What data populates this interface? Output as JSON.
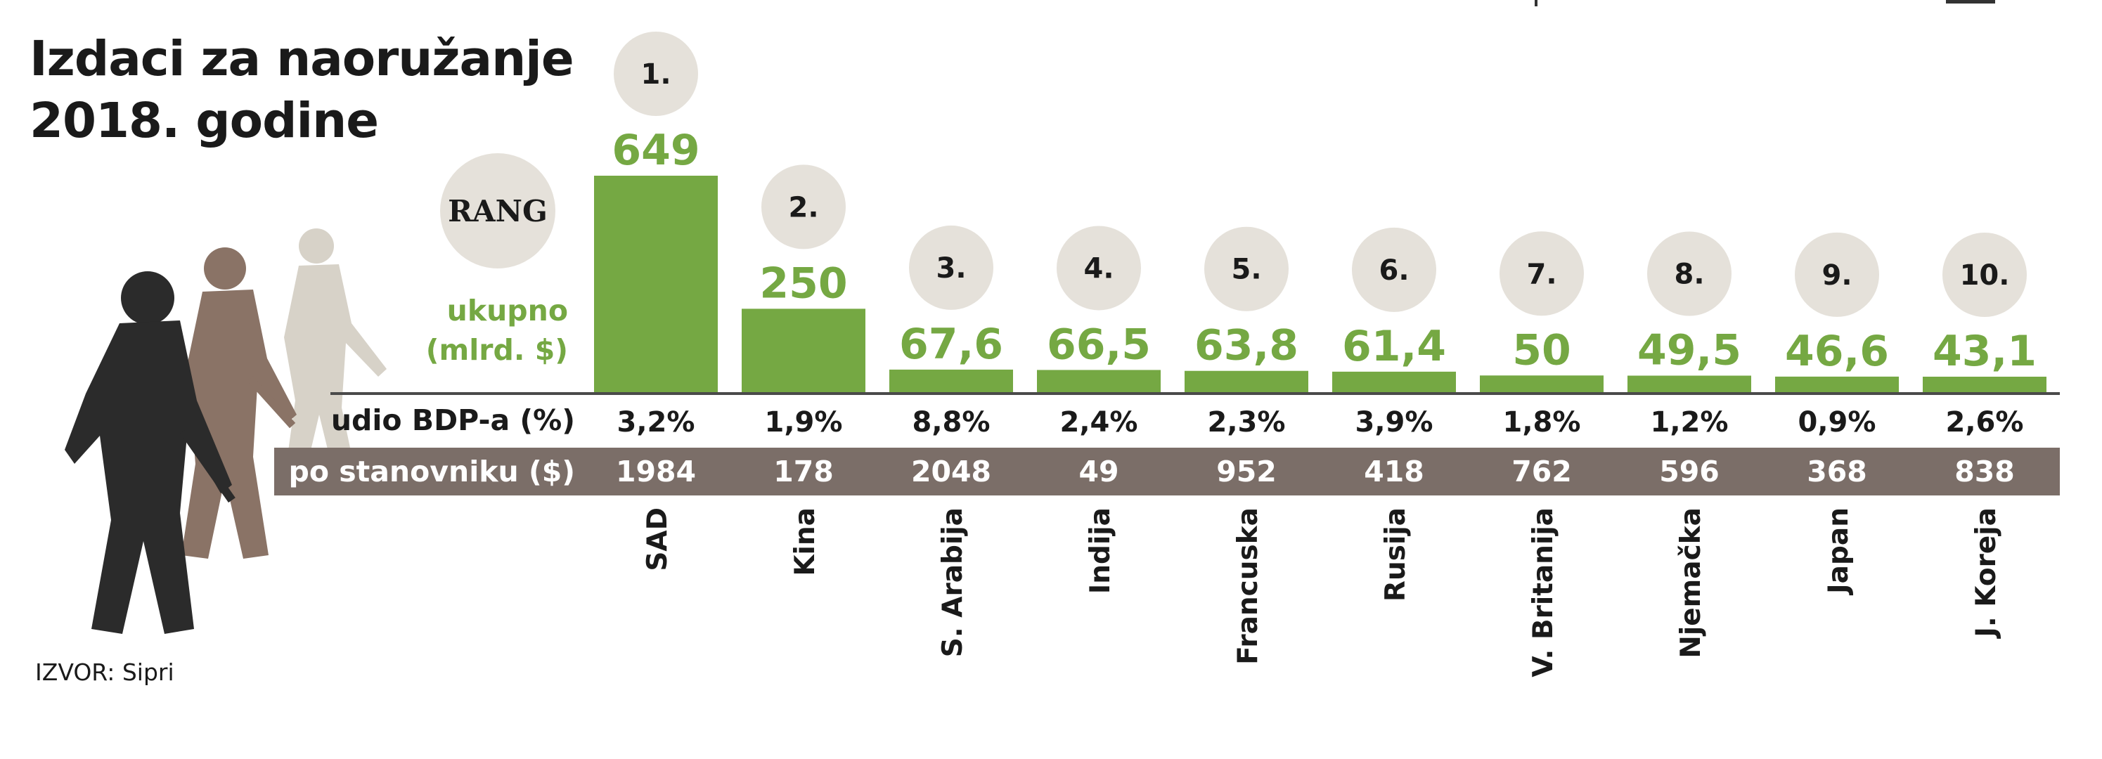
{
  "title_lines": [
    "Izdaci za naoružanje",
    "2018. godine"
  ],
  "rank_label": "RANG",
  "total_label_lines": [
    "ukupno",
    "(mlrd. $)"
  ],
  "gdp_share_label": "udio BDP-a (%)",
  "per_capita_label": "po stanovniku ($)",
  "source": "IZVOR: Sipri",
  "colors": {
    "bar": "#75a843",
    "value_text": "#75a843",
    "rank_circle": "#e5e1da",
    "per_capita_band": "#7b6e68",
    "text": "#1a1a1a"
  },
  "chart_data": {
    "type": "bar",
    "categories": [
      "SAD",
      "Kina",
      "S. Arabija",
      "Indija",
      "Francuska",
      "Rusija",
      "V. Britanija",
      "Njemačka",
      "Japan",
      "J. Koreja"
    ],
    "ranks": [
      "1.",
      "2.",
      "3.",
      "4.",
      "5.",
      "6.",
      "7.",
      "8.",
      "9.",
      "10."
    ],
    "values": [
      649,
      250,
      67.6,
      66.5,
      63.8,
      61.4,
      50,
      49.5,
      46.6,
      43.1
    ],
    "value_labels": [
      "649",
      "250",
      "67,6",
      "66,5",
      "63,8",
      "61,4",
      "50",
      "49,5",
      "46,6",
      "43,1"
    ],
    "gdp_share": [
      "3,2%",
      "1,9%",
      "8,8%",
      "2,4%",
      "2,3%",
      "3,9%",
      "1,8%",
      "1,2%",
      "0,9%",
      "2,6%"
    ],
    "per_capita": [
      "1984",
      "178",
      "2048",
      "49",
      "952",
      "418",
      "762",
      "596",
      "368",
      "838"
    ],
    "title": "Izdaci za naoružanje 2018. godine",
    "ylabel": "ukupno (mlrd. $)",
    "ylim": [
      0,
      649
    ],
    "grid": false,
    "legend": "none"
  }
}
